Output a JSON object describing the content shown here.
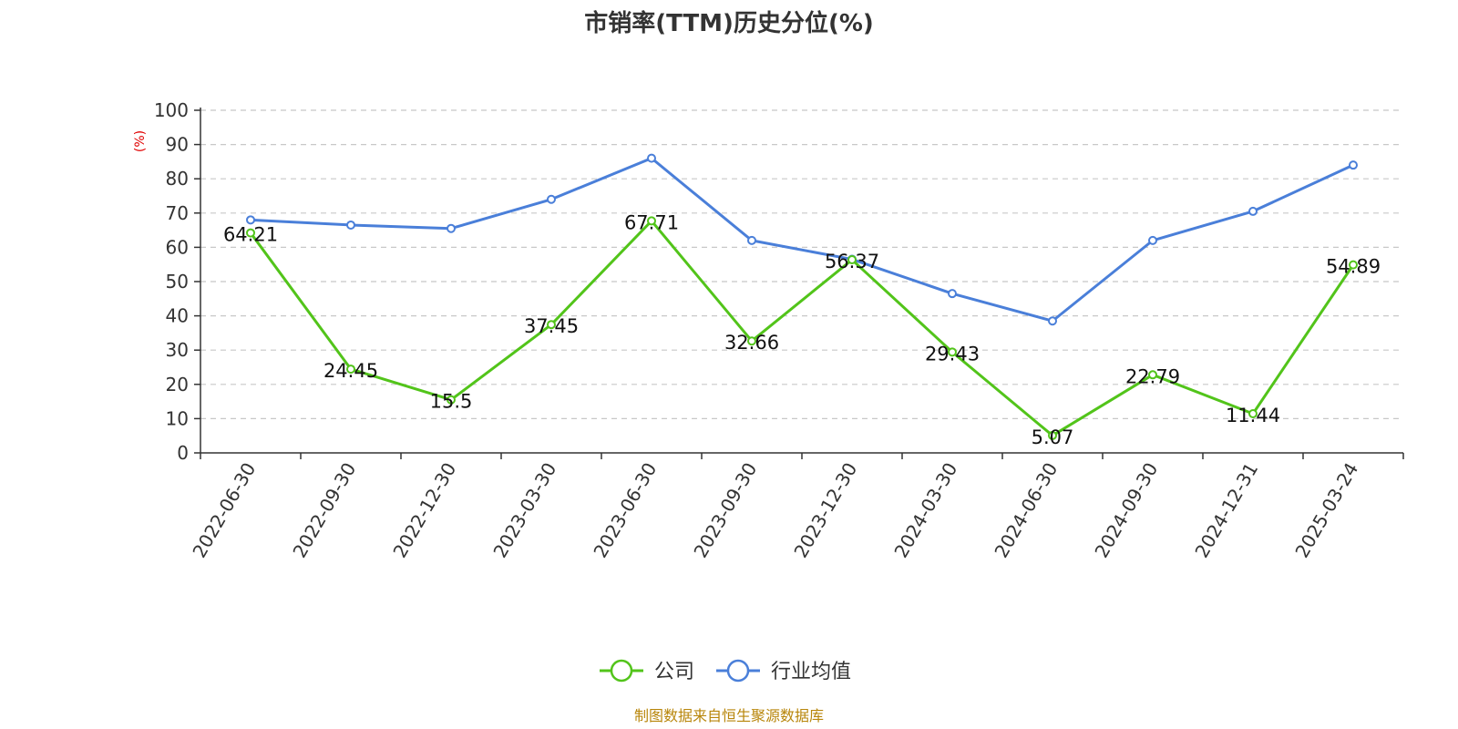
{
  "chart_data": {
    "type": "line",
    "title": "市销率(TTM)历史分位(%)",
    "ylabel": "(%)",
    "xlabel": "",
    "ylim": [
      0,
      100
    ],
    "yticks": [
      0,
      10,
      20,
      30,
      40,
      50,
      60,
      70,
      80,
      90,
      100
    ],
    "grid": true,
    "legend_position": "bottom-center",
    "categories": [
      "2022-06-30",
      "2022-09-30",
      "2022-12-30",
      "2023-03-30",
      "2023-06-30",
      "2023-09-30",
      "2023-12-30",
      "2024-03-30",
      "2024-06-30",
      "2024-09-30",
      "2024-12-31",
      "2025-03-24"
    ],
    "series": [
      {
        "name": "公司",
        "color": "#52c41a",
        "values": [
          64.21,
          24.45,
          15.5,
          37.45,
          67.71,
          32.66,
          56.37,
          29.43,
          5.07,
          22.79,
          11.44,
          54.89
        ],
        "labels": [
          "64.21",
          "24.45",
          "15.5",
          "37.45",
          "67.71",
          "32.66",
          "56.37",
          "29.43",
          "5.07",
          "22.79",
          "11.44",
          "54.89"
        ]
      },
      {
        "name": "行业均值",
        "color": "#4a7fd9",
        "values": [
          68.0,
          66.5,
          65.5,
          74.0,
          86.0,
          62.0,
          56.5,
          46.5,
          38.5,
          62.0,
          70.5,
          84.0
        ]
      }
    ],
    "source": "制图数据来自恒生聚源数据库"
  }
}
